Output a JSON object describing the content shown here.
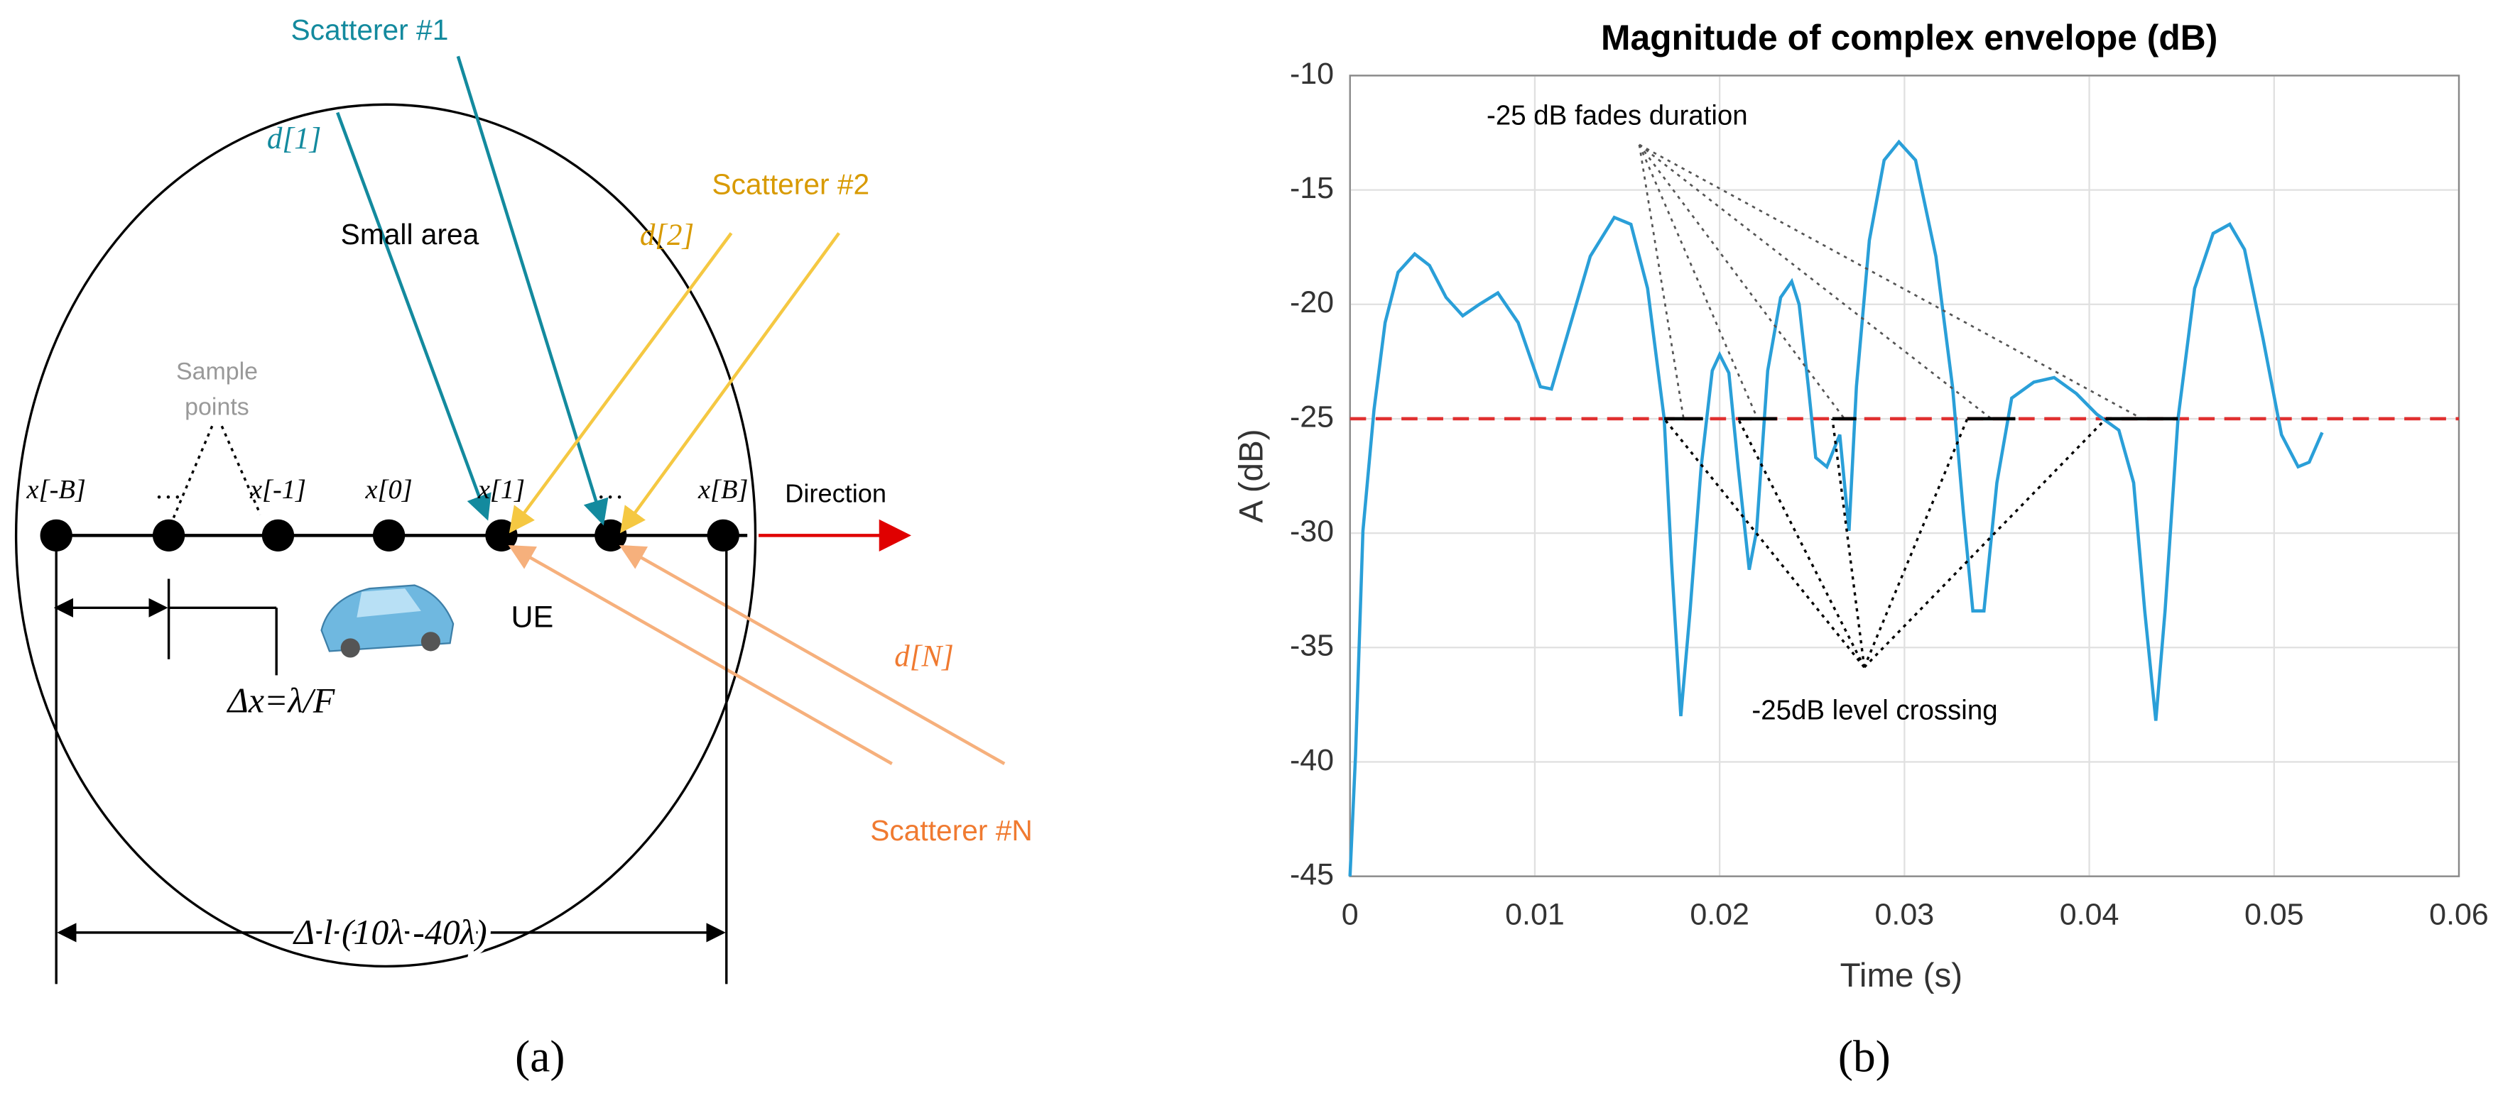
{
  "diagram": {
    "panel_label": "(a)",
    "scatterer_1": "Scatterer #1",
    "d1": "d[1]",
    "scatterer_2": "Scatterer #2",
    "d2": "d[2]",
    "scatterer_n": "Scatterer #N",
    "dn": "d[N]",
    "small_area": "Small area",
    "sample_points": [
      "Sample",
      "points"
    ],
    "positions": [
      "x[-B]",
      "…",
      "x[-1]",
      "x[0]",
      "x[1]",
      "…",
      "x[B]"
    ],
    "direction": "Direction",
    "ue": "UE",
    "delta_x": "Δx=λ/F",
    "delta_l": "Δ l (10λ -40λ)"
  },
  "chart_data": {
    "type": "line",
    "panel_label": "(b)",
    "title": "Magnitude of complex envelope (dB)",
    "xlabel": "Time (s)",
    "ylabel": "A (dB)",
    "color": "#2a9fd8",
    "x": [
      0,
      0.0003,
      0.0007,
      0.0013,
      0.0019,
      0.0026,
      0.0035,
      0.0043,
      0.0052,
      0.0061,
      0.007,
      0.008,
      0.0091,
      0.0103,
      0.0109,
      0.0117,
      0.013,
      0.0143,
      0.0152,
      0.0161,
      0.017,
      0.0174,
      0.0179,
      0.0184,
      0.019,
      0.0196,
      0.02,
      0.0205,
      0.021,
      0.0216,
      0.022,
      0.0226,
      0.0233,
      0.0239,
      0.0243,
      0.0248,
      0.0252,
      0.0258,
      0.0265,
      0.027,
      0.0274,
      0.0281,
      0.0289,
      0.0297,
      0.0306,
      0.0317,
      0.0326,
      0.0332,
      0.0337,
      0.0343,
      0.035,
      0.0358,
      0.037,
      0.0381,
      0.0393,
      0.0404,
      0.0416,
      0.0424,
      0.043,
      0.0436,
      0.0441,
      0.0448,
      0.0457,
      0.0467,
      0.0476,
      0.0484,
      0.0494,
      0.0504,
      0.0513,
      0.0519,
      0.0526
    ],
    "values": [
      -45,
      -39.7,
      -29.9,
      -24.6,
      -20.8,
      -18.6,
      -17.8,
      -18.3,
      -19.7,
      -20.5,
      -20,
      -19.5,
      -20.8,
      -23.6,
      -23.7,
      -21.5,
      -17.9,
      -16.2,
      -16.5,
      -19.3,
      -25,
      -31.3,
      -38,
      -33.4,
      -27.1,
      -22.9,
      -22.2,
      -23,
      -27.1,
      -31.6,
      -29.9,
      -22.9,
      -19.7,
      -19,
      -20,
      -23.6,
      -26.7,
      -27.1,
      -25.7,
      -29.9,
      -23.6,
      -17.2,
      -13.7,
      -12.9,
      -13.7,
      -17.9,
      -23.6,
      -29.2,
      -33.4,
      -33.4,
      -27.8,
      -24.1,
      -23.4,
      -23.2,
      -23.9,
      -24.8,
      -25.5,
      -27.8,
      -33.4,
      -38.2,
      -33.4,
      -25,
      -19.3,
      -16.9,
      -16.5,
      -17.6,
      -21.5,
      -25.7,
      -27.1,
      -26.9,
      -25.6
    ],
    "reference_line": {
      "value": -25,
      "color": "#e03030"
    },
    "fade_intervals": [
      [
        0.017,
        0.0191
      ],
      [
        0.021,
        0.0231
      ],
      [
        0.0261,
        0.0274
      ],
      [
        0.0334,
        0.036
      ],
      [
        0.0409,
        0.0448
      ]
    ],
    "annotations": [
      "-25 dB fades duration",
      "-25dB level crossing"
    ],
    "xlim": [
      0,
      0.06
    ],
    "xticks": [
      0,
      0.01,
      0.02,
      0.03,
      0.04,
      0.05,
      0.06
    ],
    "ylim": [
      -45,
      -10
    ],
    "yticks": [
      -45,
      -40,
      -35,
      -30,
      -25,
      -20,
      -15,
      -10
    ],
    "grid": true
  }
}
